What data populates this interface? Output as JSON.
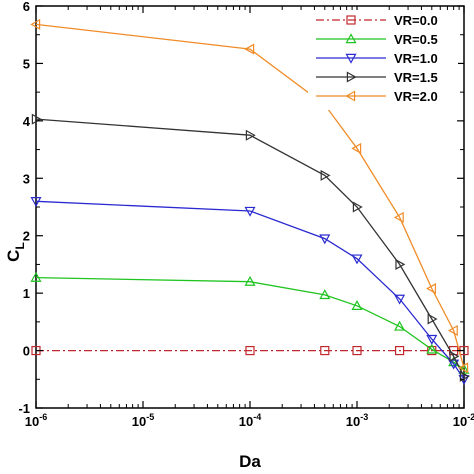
{
  "chart_data": {
    "type": "line",
    "xscale": "log",
    "xlim": [
      1e-06,
      0.01
    ],
    "ylim": [
      -1,
      6
    ],
    "xlabel": "Da",
    "ylabel": "C",
    "ylabel_sub": "L",
    "legend_position": "top-right",
    "grid": false,
    "x_ticks": [
      {
        "value": 1e-06,
        "base": "10",
        "exp": "-6"
      },
      {
        "value": 1e-05,
        "base": "10",
        "exp": "-5"
      },
      {
        "value": 0.0001,
        "base": "10",
        "exp": "-4"
      },
      {
        "value": 0.001,
        "base": "10",
        "exp": "-3"
      },
      {
        "value": 0.01,
        "base": "10",
        "exp": "-2"
      }
    ],
    "y_ticks": [
      {
        "value": -1,
        "label": "-1"
      },
      {
        "value": 0,
        "label": "0"
      },
      {
        "value": 1,
        "label": "1"
      },
      {
        "value": 2,
        "label": "2"
      },
      {
        "value": 3,
        "label": "3"
      },
      {
        "value": 4,
        "label": "4"
      },
      {
        "value": 5,
        "label": "5"
      },
      {
        "value": 6,
        "label": "6"
      }
    ],
    "series": [
      {
        "name": "VR=0.0",
        "color": "#c0282d",
        "marker": "square",
        "dash": "dashdot",
        "x": [
          1e-06,
          0.0001,
          0.0005,
          0.001,
          0.0025,
          0.005,
          0.008,
          0.01
        ],
        "y": [
          0,
          0,
          0,
          0,
          0,
          0,
          0,
          0
        ]
      },
      {
        "name": "VR=0.5",
        "color": "#1fc41f",
        "marker": "triangle-up",
        "dash": "solid",
        "x": [
          1e-06,
          0.0001,
          0.0005,
          0.001,
          0.0025,
          0.005,
          0.008,
          0.01
        ],
        "y": [
          1.27,
          1.2,
          0.97,
          0.78,
          0.42,
          0.02,
          -0.2,
          -0.33
        ]
      },
      {
        "name": "VR=1.0",
        "color": "#2a2ad0",
        "marker": "triangle-down",
        "dash": "solid",
        "x": [
          1e-06,
          0.0001,
          0.0005,
          0.001,
          0.0025,
          0.005,
          0.008,
          0.01
        ],
        "y": [
          2.6,
          2.43,
          1.95,
          1.6,
          0.9,
          0.2,
          -0.23,
          -0.5
        ]
      },
      {
        "name": "VR=1.5",
        "color": "#333333",
        "marker": "triangle-right",
        "dash": "solid",
        "x": [
          1e-06,
          0.0001,
          0.0005,
          0.001,
          0.0025,
          0.005,
          0.008,
          0.01
        ],
        "y": [
          4.03,
          3.75,
          3.05,
          2.5,
          1.5,
          0.55,
          -0.1,
          -0.45
        ]
      },
      {
        "name": "VR=2.0",
        "color": "#f08c28",
        "marker": "triangle-left",
        "dash": "solid",
        "x": [
          1e-06,
          0.0001,
          0.0005,
          0.001,
          0.0025,
          0.005,
          0.008,
          0.01
        ],
        "y": [
          5.68,
          5.25,
          4.28,
          3.52,
          2.32,
          1.08,
          0.35,
          -0.3
        ]
      }
    ]
  }
}
